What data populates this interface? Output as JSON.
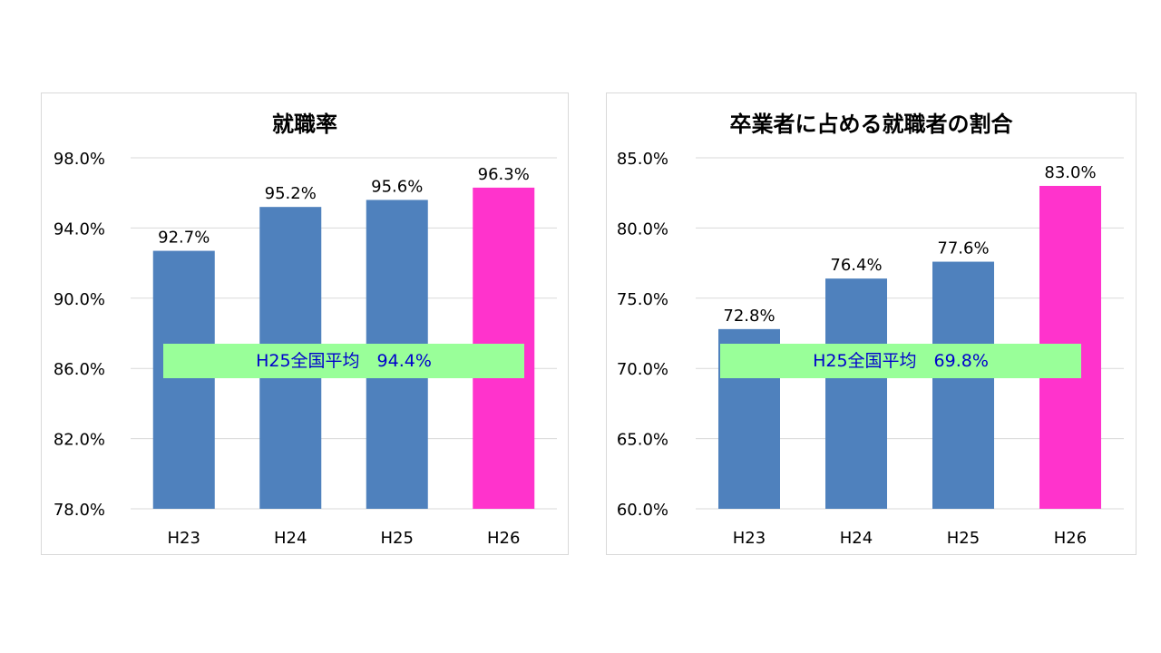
{
  "colors": {
    "bar": "#4f81bd",
    "highlight": "#ff33cc",
    "avg_box": "#99ff99",
    "avg_text": "#0000cc",
    "grid": "#d9d9d9"
  },
  "chart_data": [
    {
      "type": "bar",
      "title": "就職率",
      "categories": [
        "H23",
        "H24",
        "H25",
        "H26"
      ],
      "values": [
        92.7,
        95.2,
        95.6,
        96.3
      ],
      "value_labels": [
        "92.7%",
        "95.2%",
        "95.6%",
        "96.3%"
      ],
      "highlight_index": 3,
      "ylim": [
        78,
        98
      ],
      "yticks": [
        78,
        82,
        86,
        90,
        94,
        98
      ],
      "ytick_labels": [
        "78.0%",
        "82.0%",
        "86.0%",
        "90.0%",
        "94.0%",
        "98.0%"
      ],
      "grid": true,
      "annotation": {
        "text": "H25全国平均　94.4%"
      }
    },
    {
      "type": "bar",
      "title": "卒業者に占める就職者の割合",
      "categories": [
        "H23",
        "H24",
        "H25",
        "H26"
      ],
      "values": [
        72.8,
        76.4,
        77.6,
        83.0
      ],
      "value_labels": [
        "72.8%",
        "76.4%",
        "77.6%",
        "83.0%"
      ],
      "highlight_index": 3,
      "ylim": [
        60,
        85
      ],
      "yticks": [
        60,
        65,
        70,
        75,
        80,
        85
      ],
      "ytick_labels": [
        "60.0%",
        "65.0%",
        "70.0%",
        "75.0%",
        "80.0%",
        "85.0%"
      ],
      "grid": true,
      "annotation": {
        "text": "H25全国平均　69.8%"
      }
    }
  ]
}
